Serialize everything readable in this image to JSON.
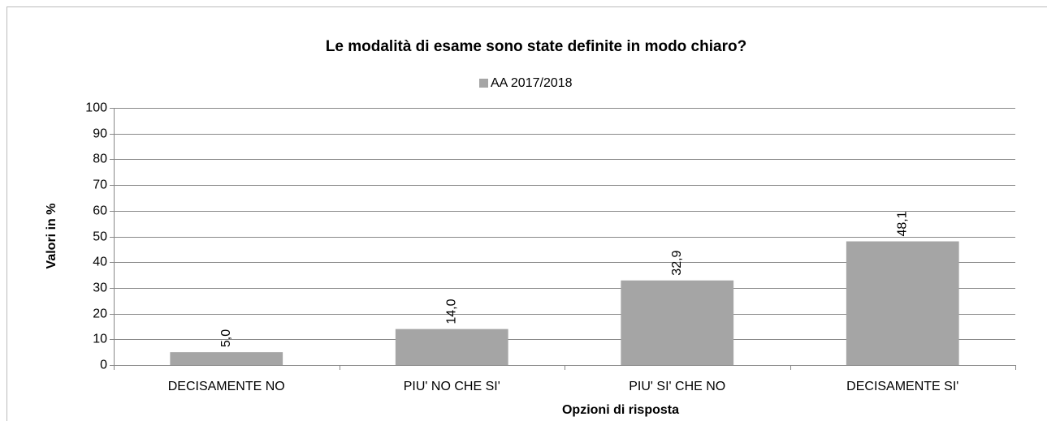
{
  "chart_data": {
    "type": "bar",
    "title": "Le modalità di esame sono state definite in modo chiaro?",
    "x_label": "Opzioni di risposta",
    "y_label": "Valori in %",
    "categories": [
      "DECISAMENTE NO",
      "PIU' NO CHE SI'",
      "PIU' SI' CHE NO",
      "DECISAMENTE SI'"
    ],
    "series": [
      {
        "name": "AA 2017/2018",
        "color": "#a5a5a5",
        "values": [
          5.0,
          14.0,
          32.9,
          48.1
        ],
        "value_labels": [
          "5,0",
          "14,0",
          "32,9",
          "48,1"
        ]
      }
    ],
    "ylim": [
      0,
      100
    ],
    "yticks": [
      0,
      10,
      20,
      30,
      40,
      50,
      60,
      70,
      80,
      90,
      100
    ],
    "grid": true,
    "legend": "top"
  }
}
